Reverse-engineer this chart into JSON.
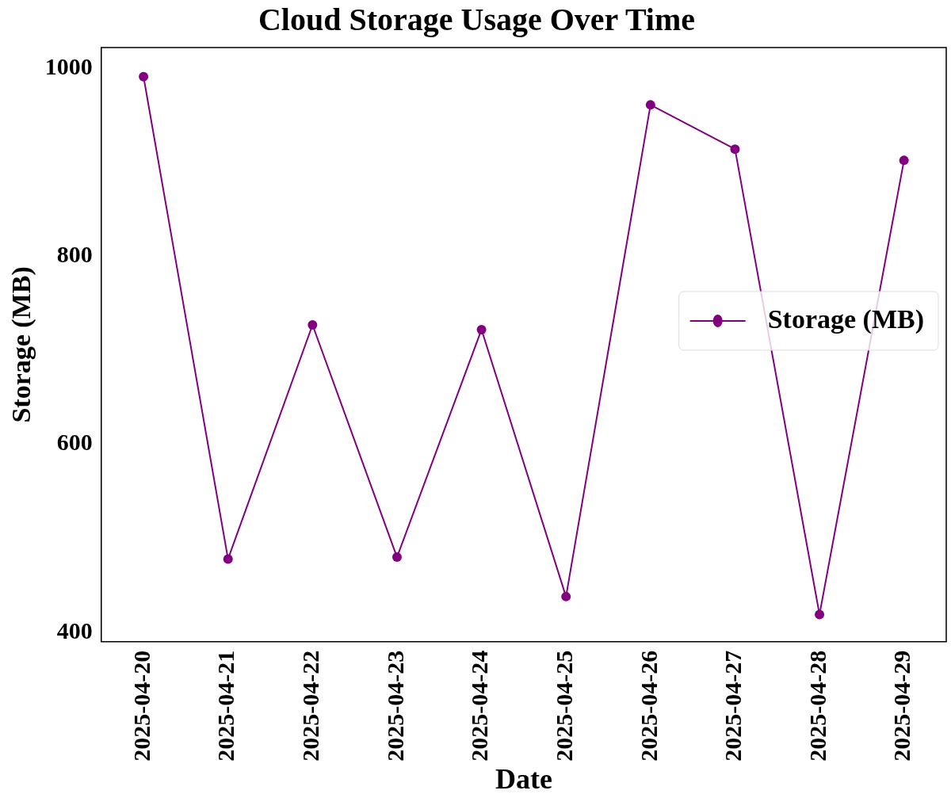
{
  "chart_data": {
    "type": "line",
    "title": "Cloud Storage Usage Over Time",
    "xlabel": "Date",
    "ylabel": "Storage (MB)",
    "categories": [
      "2025-04-20",
      "2025-04-21",
      "2025-04-22",
      "2025-04-23",
      "2025-04-24",
      "2025-04-25",
      "2025-04-26",
      "2025-04-27",
      "2025-04-28",
      "2025-04-29"
    ],
    "series": [
      {
        "name": "Storage (MB)",
        "color": "#800080",
        "values": [
          991,
          478,
          727,
          480,
          722,
          438,
          961,
          914,
          419,
          902
        ]
      }
    ],
    "ylim": [
      390,
      1022
    ],
    "yticks": [
      400,
      600,
      800,
      1000
    ],
    "grid": false,
    "legend": "right",
    "marker": "circle",
    "line_style": "solid"
  }
}
